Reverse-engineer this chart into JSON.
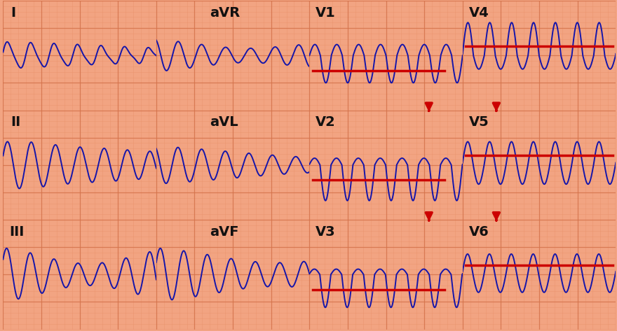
{
  "bg_color": "#F2A482",
  "grid_minor_color": "#E8906A",
  "grid_major_color": "#D4724A",
  "ecg_color": "#1515AA",
  "red_line_color": "#CC0000",
  "arrow_color": "#CC0000",
  "label_color": "#111111",
  "label_fontsize": 14,
  "label_fontweight": "bold",
  "fig_width": 8.8,
  "fig_height": 4.73,
  "leads_row0": [
    "I",
    "aVR",
    "V1",
    "V4"
  ],
  "leads_row1": [
    "II",
    "aVL",
    "V2",
    "V5"
  ],
  "leads_row2": [
    "III",
    "aVF",
    "V3",
    "V6"
  ]
}
